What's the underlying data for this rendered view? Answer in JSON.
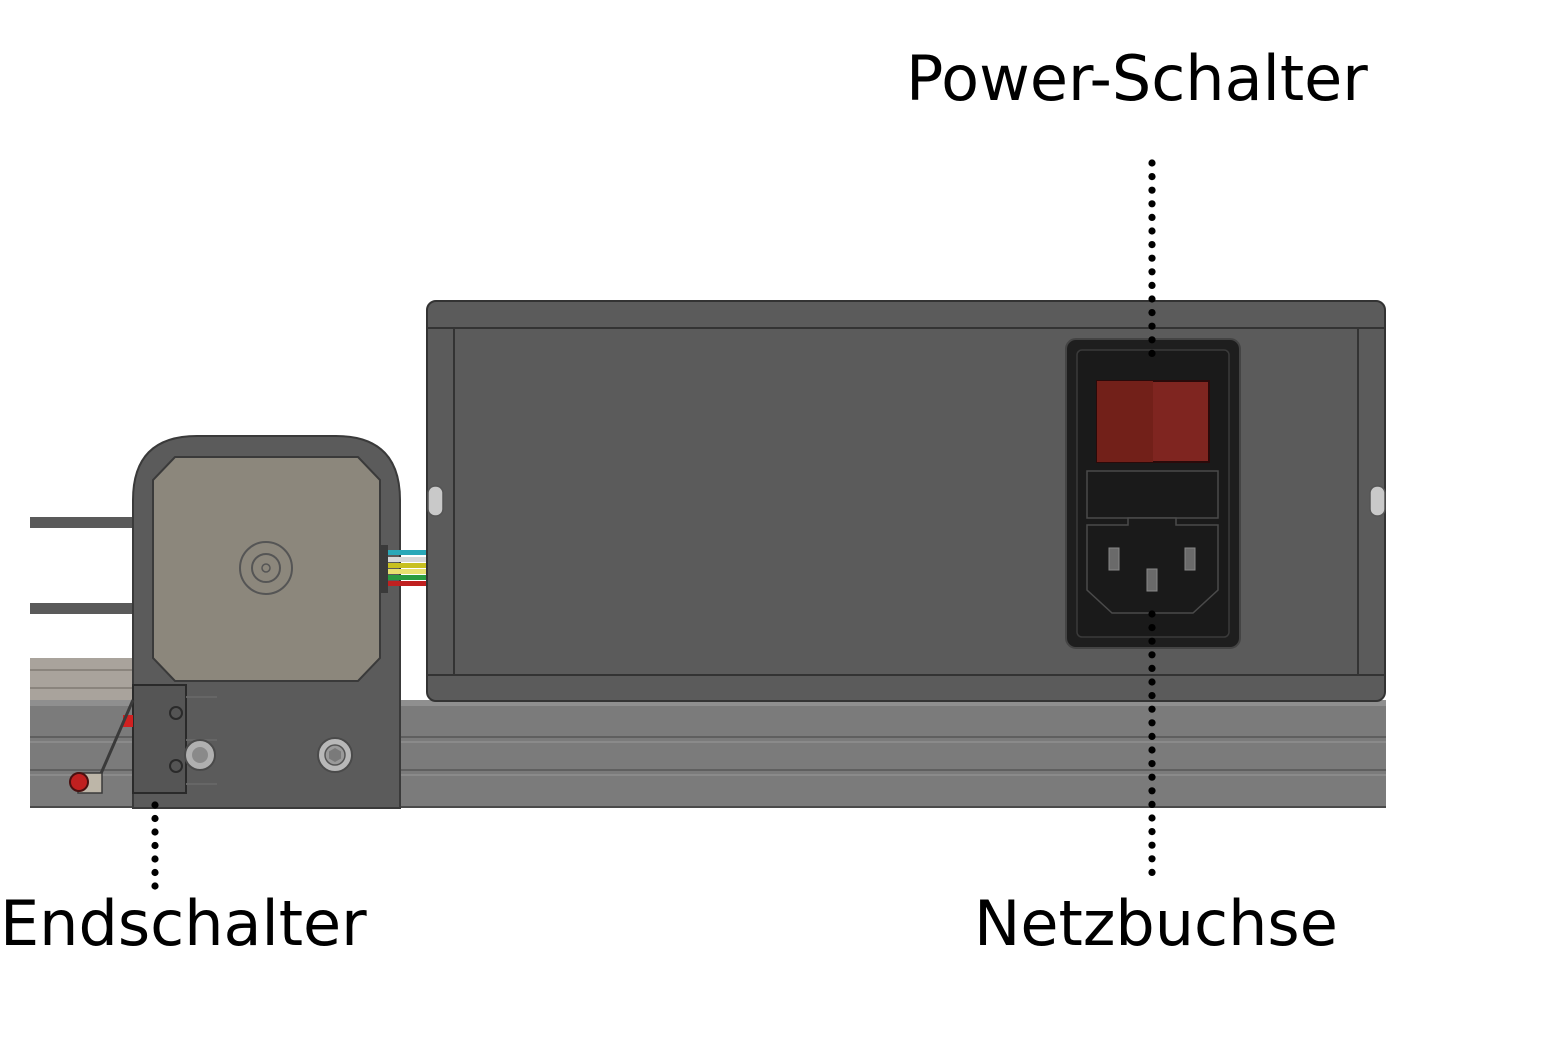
{
  "labels": {
    "power_switch": "Power-Schalter",
    "mains_socket": "Netzbuchse",
    "end_switch": "Endschalter"
  },
  "colors": {
    "housing": "#5b5b5b",
    "housing_edge": "#3a3a3a",
    "rail": "#7a7a7a",
    "motor_plate": "#8c877c",
    "switch_red": "#7f2520",
    "socket_black": "#1e1e1e"
  }
}
